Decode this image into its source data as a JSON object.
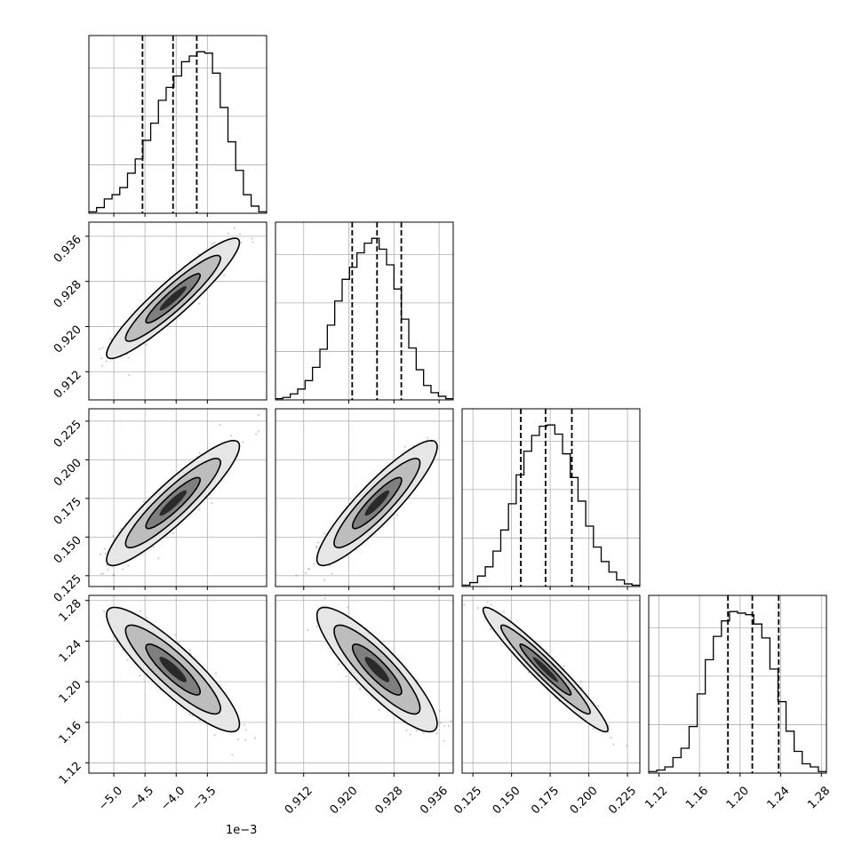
{
  "chart_data": {
    "type": "corner",
    "variables": [
      {
        "range": [
          -5.4,
          -2.55
        ],
        "ticks": [
          -5.0,
          -4.5,
          -4.0,
          -3.5
        ],
        "tick_labels": [
          "−5.0",
          "−4.5",
          "−4.0",
          "−3.5"
        ],
        "offset_label": "1e−3",
        "quantiles": [
          -4.54,
          -4.05,
          -3.67
        ]
      },
      {
        "range": [
          0.907,
          0.9385
        ],
        "ticks": [
          0.912,
          0.92,
          0.928,
          0.936
        ],
        "tick_labels": [
          "0.912",
          "0.920",
          "0.928",
          "0.936"
        ],
        "quantiles": [
          0.9206,
          0.925,
          0.9293
        ]
      },
      {
        "range": [
          0.118,
          0.233
        ],
        "ticks": [
          0.125,
          0.15,
          0.175,
          0.2,
          0.225
        ],
        "tick_labels": [
          "0.125",
          "0.150",
          "0.175",
          "0.200",
          "0.225"
        ],
        "quantiles": [
          0.156,
          0.172,
          0.189
        ]
      },
      {
        "range": [
          1.11,
          1.285
        ],
        "ticks": [
          1.12,
          1.16,
          1.2,
          1.24,
          1.28
        ],
        "tick_labels": [
          "1.12",
          "1.16",
          "1.20",
          "1.24",
          "1.28"
        ],
        "quantiles": [
          1.188,
          1.212,
          1.238
        ]
      }
    ],
    "histograms": [
      [
        1,
        4,
        10,
        13,
        18,
        28,
        38,
        51,
        63,
        79,
        88,
        96,
        106,
        110,
        113,
        112,
        98,
        74,
        50,
        30,
        13,
        5,
        1
      ],
      [
        1,
        2,
        5,
        9,
        16,
        27,
        42,
        62,
        82,
        100,
        110,
        122,
        130,
        134,
        125,
        112,
        92,
        67,
        43,
        25,
        12,
        6,
        3,
        1
      ],
      [
        1,
        3,
        8,
        15,
        27,
        43,
        63,
        85,
        103,
        115,
        122,
        123,
        116,
        101,
        83,
        65,
        46,
        30,
        19,
        11,
        5,
        2,
        1
      ],
      [
        1,
        2,
        4,
        10,
        16,
        30,
        51,
        73,
        88,
        98,
        104,
        103,
        102,
        96,
        87,
        67,
        46,
        27,
        14,
        6,
        4,
        1
      ]
    ],
    "grid": true,
    "histogram_line_color": "#000000",
    "quantile_line_style": "dashed"
  }
}
